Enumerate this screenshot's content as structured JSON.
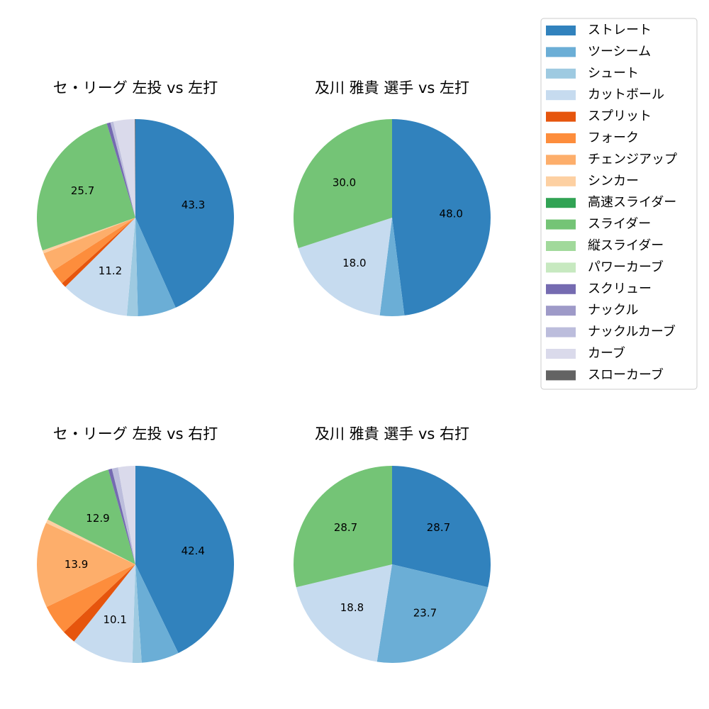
{
  "legend": {
    "items": [
      {
        "label": "ストレート",
        "color": "#3182bd"
      },
      {
        "label": "ツーシーム",
        "color": "#6baed6"
      },
      {
        "label": "シュート",
        "color": "#9ecae1"
      },
      {
        "label": "カットボール",
        "color": "#c6dbef"
      },
      {
        "label": "スプリット",
        "color": "#e6550d"
      },
      {
        "label": "フォーク",
        "color": "#fd8d3c"
      },
      {
        "label": "チェンジアップ",
        "color": "#fdae6b"
      },
      {
        "label": "シンカー",
        "color": "#fdd0a2"
      },
      {
        "label": "高速スライダー",
        "color": "#31a354"
      },
      {
        "label": "スライダー",
        "color": "#74c476"
      },
      {
        "label": "縦スライダー",
        "color": "#a1d99b"
      },
      {
        "label": "パワーカーブ",
        "color": "#c7e9c0"
      },
      {
        "label": "スクリュー",
        "color": "#756bb1"
      },
      {
        "label": "ナックル",
        "color": "#9e9ac8"
      },
      {
        "label": "ナックルカーブ",
        "color": "#bcbddc"
      },
      {
        "label": "カーブ",
        "color": "#dadaeb"
      },
      {
        "label": "スローカーブ",
        "color": "#636363"
      }
    ]
  },
  "chart_data": [
    {
      "type": "pie",
      "title": "セ・リーグ 左投 vs 左打",
      "slices": [
        {
          "category": "ストレート",
          "value": 43.3,
          "label": "43.3"
        },
        {
          "category": "ツーシーム",
          "value": 6.3,
          "label": ""
        },
        {
          "category": "シュート",
          "value": 1.8,
          "label": ""
        },
        {
          "category": "カットボール",
          "value": 11.2,
          "label": "11.2"
        },
        {
          "category": "スプリット",
          "value": 0.8,
          "label": ""
        },
        {
          "category": "フォーク",
          "value": 2.5,
          "label": ""
        },
        {
          "category": "チェンジアップ",
          "value": 3.2,
          "label": ""
        },
        {
          "category": "シンカー",
          "value": 0.5,
          "label": ""
        },
        {
          "category": "スライダー",
          "value": 25.7,
          "label": "25.7"
        },
        {
          "category": "スクリュー",
          "value": 0.6,
          "label": ""
        },
        {
          "category": "ナックルカーブ",
          "value": 0.5,
          "label": ""
        },
        {
          "category": "カーブ",
          "value": 3.5,
          "label": ""
        },
        {
          "category": "スローカーブ",
          "value": 0.1,
          "label": ""
        }
      ]
    },
    {
      "type": "pie",
      "title": "及川 雅貴 選手 vs 左打",
      "slices": [
        {
          "category": "ストレート",
          "value": 48.0,
          "label": "48.0"
        },
        {
          "category": "ツーシーム",
          "value": 4.0,
          "label": ""
        },
        {
          "category": "カットボール",
          "value": 18.0,
          "label": "18.0"
        },
        {
          "category": "スライダー",
          "value": 30.0,
          "label": "30.0"
        }
      ]
    },
    {
      "type": "pie",
      "title": "セ・リーグ 左投 vs 右打",
      "slices": [
        {
          "category": "ストレート",
          "value": 42.4,
          "label": "42.4"
        },
        {
          "category": "ツーシーム",
          "value": 6.1,
          "label": ""
        },
        {
          "category": "シュート",
          "value": 1.5,
          "label": ""
        },
        {
          "category": "カットボール",
          "value": 10.1,
          "label": "10.1"
        },
        {
          "category": "スプリット",
          "value": 2.2,
          "label": ""
        },
        {
          "category": "フォーク",
          "value": 4.9,
          "label": ""
        },
        {
          "category": "チェンジアップ",
          "value": 13.9,
          "label": "13.9"
        },
        {
          "category": "シンカー",
          "value": 0.6,
          "label": ""
        },
        {
          "category": "スライダー",
          "value": 12.9,
          "label": "12.9"
        },
        {
          "category": "スクリュー",
          "value": 0.6,
          "label": ""
        },
        {
          "category": "ナックルカーブ",
          "value": 1.0,
          "label": ""
        },
        {
          "category": "カーブ",
          "value": 2.8,
          "label": ""
        }
      ]
    },
    {
      "type": "pie",
      "title": "及川 雅貴 選手 vs 右打",
      "slices": [
        {
          "category": "ストレート",
          "value": 28.7,
          "label": "28.7"
        },
        {
          "category": "ツーシーム",
          "value": 23.7,
          "label": "23.7"
        },
        {
          "category": "カットボール",
          "value": 18.8,
          "label": "18.8"
        },
        {
          "category": "スライダー",
          "value": 28.7,
          "label": "28.7"
        }
      ]
    }
  ]
}
